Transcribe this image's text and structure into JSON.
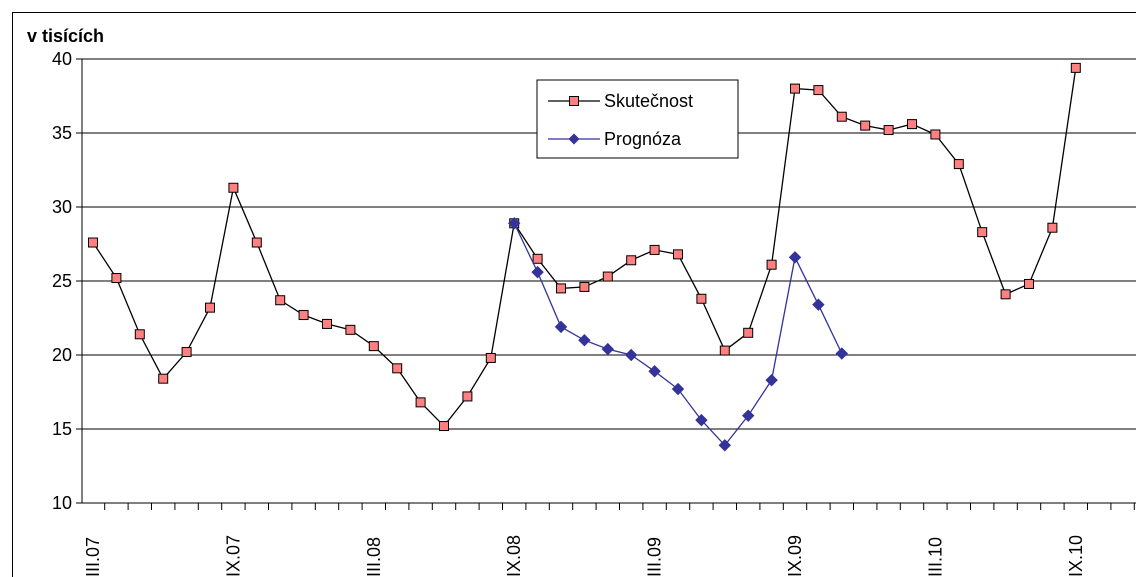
{
  "chart_data": {
    "type": "line",
    "ylabel": "v tisících",
    "ylim": [
      10,
      40
    ],
    "yticks": [
      10,
      15,
      20,
      25,
      30,
      35,
      40
    ],
    "grid": true,
    "legend_position": "top-center",
    "x_tick_labels": [
      "III.07",
      "IX.07",
      "III.08",
      "IX.08",
      "III.09",
      "IX.09",
      "III.10",
      "IX.10"
    ],
    "x_tick_months": [
      0,
      6,
      12,
      18,
      24,
      30,
      36,
      42
    ],
    "series": [
      {
        "name": "Skutečnost",
        "color": "#000000",
        "marker_fill": "#ff8080",
        "marker": "square",
        "start_month": 0,
        "values": [
          27.6,
          25.2,
          21.4,
          18.4,
          20.2,
          23.2,
          31.3,
          27.6,
          23.7,
          22.7,
          22.1,
          21.7,
          20.6,
          19.1,
          16.8,
          15.2,
          17.2,
          19.8,
          28.9,
          26.5,
          24.5,
          24.6,
          25.3,
          26.4,
          27.1,
          26.8,
          23.8,
          20.3,
          21.5,
          26.1,
          38.0,
          37.9,
          36.1,
          35.5,
          35.2,
          35.6,
          34.9,
          32.9,
          28.3,
          24.1,
          24.8,
          28.6,
          39.4
        ]
      },
      {
        "name": "Prognóza",
        "color": "#333399",
        "marker_fill": "#333399",
        "marker": "diamond",
        "start_month": 18,
        "values": [
          28.9,
          25.6,
          21.9,
          21.0,
          20.4,
          20.0,
          18.9,
          17.7,
          15.6,
          13.9,
          15.9,
          18.3,
          26.6,
          23.4,
          20.1
        ]
      }
    ]
  }
}
